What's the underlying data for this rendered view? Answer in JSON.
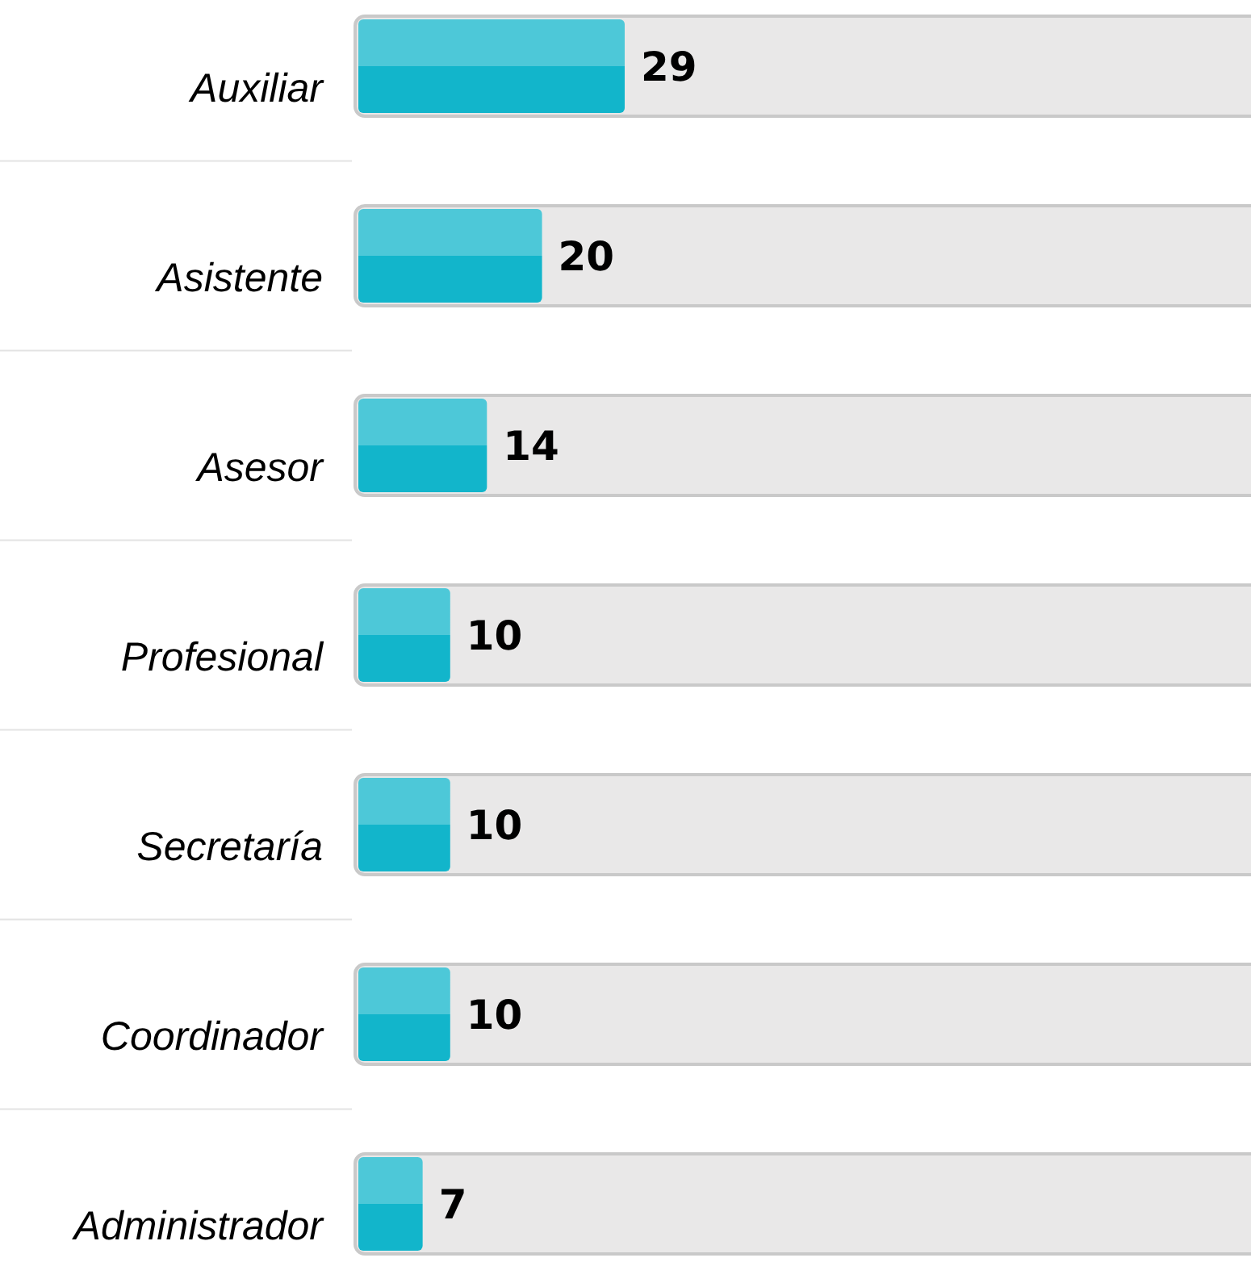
{
  "chart_data": {
    "type": "bar",
    "orientation": "horizontal",
    "categories": [
      "Auxiliar",
      "Asistente",
      "Asesor",
      "Profesional",
      "Secretaría",
      "Coordinador",
      "Administrador"
    ],
    "values": [
      29,
      20,
      14,
      10,
      10,
      10,
      7
    ],
    "color": "#12b5cb",
    "data_labels": true
  }
}
